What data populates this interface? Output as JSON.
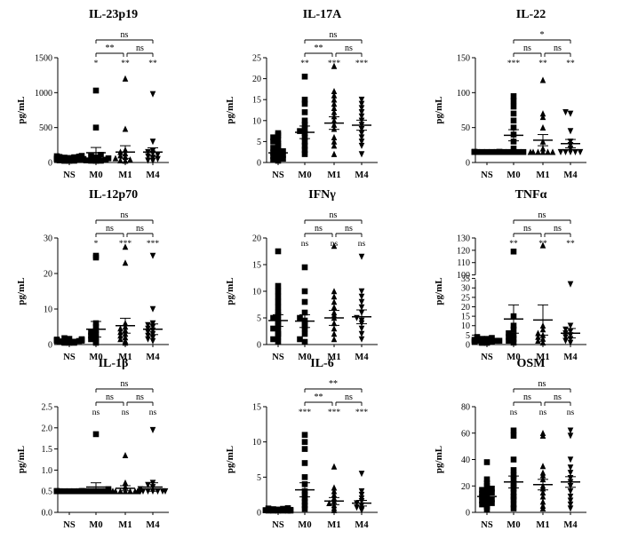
{
  "figure": {
    "y_unit": "pg/mL",
    "categories": [
      "NS",
      "M0",
      "M1",
      "M4"
    ]
  },
  "chart_data": [
    {
      "type": "scatter",
      "title": "IL-23p19",
      "ylabel": "pg/mL",
      "categories": [
        "NS",
        "M0",
        "M1",
        "M4"
      ],
      "ylim": [
        0,
        1500
      ],
      "yticks": [
        "0",
        "500",
        "1000",
        "1500"
      ],
      "series": [
        {
          "category": "NS",
          "marker": "square",
          "values": [
            5,
            10,
            15,
            20,
            25,
            30,
            35,
            40,
            45,
            50,
            55,
            60,
            65,
            70,
            75,
            80,
            85,
            90,
            95
          ],
          "mean": 30,
          "sem": 12
        },
        {
          "category": "M0",
          "marker": "square",
          "values": [
            10,
            15,
            20,
            25,
            30,
            40,
            50,
            60,
            75,
            90,
            110,
            500,
            1030
          ],
          "mean": 140,
          "sem": 75
        },
        {
          "category": "M1",
          "marker": "triangle",
          "values": [
            10,
            20,
            30,
            40,
            60,
            80,
            100,
            130,
            150,
            180,
            480,
            1200
          ],
          "mean": 150,
          "sem": 90
        },
        {
          "category": "M4",
          "marker": "triangle-down",
          "values": [
            10,
            20,
            30,
            50,
            70,
            90,
            110,
            130,
            150,
            170,
            300,
            980
          ],
          "mean": 150,
          "sem": 60
        }
      ],
      "sig_vs_ns": [
        "*",
        "**",
        "**"
      ],
      "brackets": [
        {
          "from": 1,
          "to": 3,
          "label": "ns"
        },
        {
          "from": 1,
          "to": 2,
          "label": "**"
        },
        {
          "from": 2,
          "to": 3,
          "label": "ns"
        }
      ]
    },
    {
      "type": "scatter",
      "title": "IL-17A",
      "ylabel": "pg/mL",
      "categories": [
        "NS",
        "M0",
        "M1",
        "M4"
      ],
      "ylim": [
        0,
        25
      ],
      "yticks": [
        "0",
        "5",
        "10",
        "15",
        "20",
        "25"
      ],
      "series": [
        {
          "category": "NS",
          "marker": "square",
          "values": [
            0.3,
            0.6,
            0.9,
            1.2,
            1.5,
            1.8,
            2.1,
            2.4,
            2.7,
            3,
            3.5,
            4,
            4.5,
            5,
            5.5,
            6,
            6.5,
            7
          ],
          "mean": 2.3,
          "sem": 0.6
        },
        {
          "category": "M0",
          "marker": "square",
          "values": [
            2,
            3,
            4,
            5,
            6,
            7,
            7.5,
            8,
            9,
            10,
            12,
            14,
            15,
            20.5
          ],
          "mean": 7.2,
          "sem": 1.5
        },
        {
          "category": "M1",
          "marker": "triangle",
          "values": [
            2,
            4,
            5,
            6,
            8,
            9,
            10,
            11,
            12,
            13,
            14,
            15,
            16,
            17,
            23
          ],
          "mean": 9.4,
          "sem": 1.5
        },
        {
          "category": "M4",
          "marker": "triangle-down",
          "values": [
            2,
            4,
            5,
            6,
            7,
            8,
            9,
            10,
            11,
            12,
            13,
            14,
            15
          ],
          "mean": 8.9,
          "sem": 1.2
        }
      ],
      "sig_vs_ns": [
        "**",
        "***",
        "***"
      ],
      "brackets": [
        {
          "from": 1,
          "to": 3,
          "label": "ns"
        },
        {
          "from": 1,
          "to": 2,
          "label": "**"
        },
        {
          "from": 2,
          "to": 3,
          "label": "ns"
        }
      ]
    },
    {
      "type": "scatter",
      "title": "IL-22",
      "ylabel": "pg/mL",
      "categories": [
        "NS",
        "M0",
        "M1",
        "M4"
      ],
      "ylim": [
        0,
        150
      ],
      "yticks": [
        "0",
        "50",
        "100",
        "150"
      ],
      "series": [
        {
          "category": "NS",
          "marker": "square",
          "values": [
            15,
            15,
            15,
            15,
            15,
            15,
            15,
            15,
            15,
            15,
            15,
            15,
            15,
            15,
            15,
            15,
            15,
            15
          ],
          "mean": 15,
          "sem": 0
        },
        {
          "category": "M0",
          "marker": "square",
          "values": [
            15,
            15,
            15,
            15,
            15,
            20,
            30,
            40,
            50,
            60,
            70,
            80,
            88,
            95
          ],
          "mean": 39,
          "sem": 8
        },
        {
          "category": "M1",
          "marker": "triangle",
          "values": [
            15,
            15,
            15,
            15,
            15,
            15,
            20,
            30,
            50,
            65,
            70,
            118
          ],
          "mean": 32,
          "sem": 8
        },
        {
          "category": "M4",
          "marker": "triangle-down",
          "values": [
            15,
            15,
            15,
            15,
            15,
            20,
            25,
            30,
            45,
            70,
            72
          ],
          "mean": 27,
          "sem": 6
        }
      ],
      "sig_vs_ns": [
        "***",
        "**",
        "**"
      ],
      "brackets": [
        {
          "from": 1,
          "to": 3,
          "label": "*"
        },
        {
          "from": 1,
          "to": 2,
          "label": "ns"
        },
        {
          "from": 2,
          "to": 3,
          "label": "ns"
        }
      ]
    },
    {
      "type": "scatter",
      "title": "IL-12p70",
      "ylabel": "pg/mL",
      "categories": [
        "NS",
        "M0",
        "M1",
        "M4"
      ],
      "ylim": [
        0,
        30
      ],
      "yticks": [
        "0",
        "10",
        "20",
        "30"
      ],
      "series": [
        {
          "category": "NS",
          "marker": "square",
          "values": [
            0.3,
            0.4,
            0.5,
            0.6,
            0.7,
            0.8,
            0.9,
            1,
            1,
            1.1,
            1.2,
            1.3,
            1.4,
            1.5,
            1.6,
            1.8
          ],
          "mean": 0.9,
          "sem": 0.15
        },
        {
          "category": "M0",
          "marker": "square",
          "values": [
            0.5,
            1,
            1.5,
            2,
            2.5,
            3,
            3.5,
            4,
            5,
            6,
            24.5,
            25
          ],
          "mean": 4.3,
          "sem": 2.2
        },
        {
          "category": "M1",
          "marker": "triangle",
          "values": [
            0.5,
            1,
            1.5,
            2,
            2.5,
            3,
            3.5,
            4,
            4.5,
            5,
            6,
            23,
            27.5
          ],
          "mean": 5.3,
          "sem": 2.1
        },
        {
          "category": "M4",
          "marker": "triangle-down",
          "values": [
            1,
            1.5,
            2,
            2.5,
            3,
            3.5,
            4,
            4.5,
            5,
            5.5,
            6,
            10,
            25
          ],
          "mean": 4.3,
          "sem": 1.5
        }
      ],
      "sig_vs_ns": [
        "*",
        "***",
        "***"
      ],
      "brackets": [
        {
          "from": 1,
          "to": 3,
          "label": "ns"
        },
        {
          "from": 1,
          "to": 2,
          "label": "ns"
        },
        {
          "from": 2,
          "to": 3,
          "label": "ns"
        }
      ]
    },
    {
      "type": "scatter",
      "title": "IFNγ",
      "ylabel": "pg/mL",
      "categories": [
        "NS",
        "M0",
        "M1",
        "M4"
      ],
      "ylim": [
        0,
        20
      ],
      "yticks": [
        "0",
        "5",
        "10",
        "15",
        "20"
      ],
      "series": [
        {
          "category": "NS",
          "marker": "square",
          "values": [
            0.5,
            1,
            1.5,
            2,
            2.5,
            3,
            3.5,
            4,
            4.5,
            5,
            5.5,
            6,
            7,
            8,
            9,
            10,
            11,
            17.5
          ],
          "mean": 4.5,
          "sem": 1.1
        },
        {
          "category": "M0",
          "marker": "square",
          "values": [
            0.5,
            1,
            2,
            3,
            3.5,
            4,
            4.5,
            5,
            6,
            8,
            10,
            14.5
          ],
          "mean": 4.4,
          "sem": 1.2
        },
        {
          "category": "M1",
          "marker": "triangle",
          "values": [
            1,
            2,
            3,
            4,
            5,
            5.5,
            6,
            7,
            8,
            9,
            10,
            18.5
          ],
          "mean": 5,
          "sem": 1.4
        },
        {
          "category": "M4",
          "marker": "triangle-down",
          "values": [
            1,
            2,
            3,
            4,
            4.5,
            5,
            6,
            7,
            8,
            9,
            10,
            16.5
          ],
          "mean": 5.2,
          "sem": 1.3
        }
      ],
      "sig_vs_ns": [
        "ns",
        "ns",
        "ns"
      ],
      "brackets": [
        {
          "from": 1,
          "to": 3,
          "label": "ns"
        },
        {
          "from": 1,
          "to": 2,
          "label": "ns"
        },
        {
          "from": 2,
          "to": 3,
          "label": "ns"
        }
      ]
    },
    {
      "type": "scatter",
      "title": "TNFα",
      "ylabel": "pg/mL",
      "categories": [
        "NS",
        "M0",
        "M1",
        "M4"
      ],
      "ylim": [
        0,
        130
      ],
      "ybreak": [
        35,
        100
      ],
      "yticks": [
        "0",
        "5",
        "10",
        "15",
        "20",
        "25",
        "30",
        "35",
        "100",
        "110",
        "120",
        "130"
      ],
      "series": [
        {
          "category": "NS",
          "marker": "square",
          "values": [
            0.5,
            1,
            1,
            1.5,
            2,
            2,
            2.5,
            3,
            3,
            3.5,
            4,
            2,
            1.5,
            0.8
          ],
          "mean": 2,
          "sem": 0.3
        },
        {
          "category": "M0",
          "marker": "square",
          "values": [
            1,
            2,
            3,
            4,
            5,
            6,
            8,
            10,
            15,
            119
          ],
          "mean": 13.5,
          "sem": 7.5
        },
        {
          "category": "M1",
          "marker": "triangle",
          "values": [
            1,
            2,
            3,
            4,
            5,
            6,
            8,
            10,
            124
          ],
          "mean": 13,
          "sem": 8
        },
        {
          "category": "M4",
          "marker": "triangle-down",
          "values": [
            1,
            2,
            3,
            4,
            5,
            6,
            7,
            8,
            10,
            32
          ],
          "mean": 6,
          "sem": 2.5
        }
      ],
      "sig_vs_ns": [
        "**",
        "**",
        "**"
      ],
      "brackets": [
        {
          "from": 1,
          "to": 3,
          "label": "ns"
        },
        {
          "from": 1,
          "to": 2,
          "label": "ns"
        },
        {
          "from": 2,
          "to": 3,
          "label": "ns"
        }
      ]
    },
    {
      "type": "scatter",
      "title": "IL-1β",
      "ylabel": "pg/mL",
      "categories": [
        "NS",
        "M0",
        "M1",
        "M4"
      ],
      "ylim": [
        0,
        2.5
      ],
      "yticks": [
        "0.0",
        "0.5",
        "1.0",
        "1.5",
        "2.0",
        "2.5"
      ],
      "series": [
        {
          "category": "NS",
          "marker": "square",
          "values": [
            0.5,
            0.5,
            0.5,
            0.5,
            0.5,
            0.5,
            0.5,
            0.5,
            0.5,
            0.5,
            0.5,
            0.5,
            0.5,
            0.5,
            0.5,
            0.5,
            0.5,
            0.5
          ],
          "mean": 0.5,
          "sem": 0
        },
        {
          "category": "M0",
          "marker": "square",
          "values": [
            0.5,
            0.5,
            0.5,
            0.5,
            0.5,
            0.5,
            0.5,
            0.5,
            0.5,
            0.5,
            0.55,
            1.85
          ],
          "mean": 0.6,
          "sem": 0.1
        },
        {
          "category": "M1",
          "marker": "triangle",
          "values": [
            0.5,
            0.5,
            0.5,
            0.5,
            0.5,
            0.5,
            0.5,
            0.5,
            0.5,
            0.6,
            0.7,
            1.35
          ],
          "mean": 0.57,
          "sem": 0.06
        },
        {
          "category": "M4",
          "marker": "triangle-down",
          "values": [
            0.5,
            0.5,
            0.5,
            0.5,
            0.5,
            0.5,
            0.5,
            0.55,
            0.6,
            0.65,
            0.7,
            1.95
          ],
          "mean": 0.6,
          "sem": 0.1
        }
      ],
      "sig_vs_ns": [
        "ns",
        "ns",
        "ns"
      ],
      "brackets": [
        {
          "from": 1,
          "to": 3,
          "label": "ns"
        },
        {
          "from": 1,
          "to": 2,
          "label": "ns"
        },
        {
          "from": 2,
          "to": 3,
          "label": "ns"
        }
      ]
    },
    {
      "type": "scatter",
      "title": "IL-6",
      "ylabel": "pg/mL",
      "categories": [
        "NS",
        "M0",
        "M1",
        "M4"
      ],
      "ylim": [
        0,
        15
      ],
      "yticks": [
        "0",
        "5",
        "10",
        "15"
      ],
      "series": [
        {
          "category": "NS",
          "marker": "square",
          "values": [
            0.05,
            0.1,
            0.15,
            0.2,
            0.25,
            0.3,
            0.35,
            0.4,
            0.45,
            0.5,
            0.55,
            0.6,
            0.3,
            0.2
          ],
          "mean": 0.3,
          "sem": 0.05
        },
        {
          "category": "M0",
          "marker": "square",
          "values": [
            0.5,
            1,
            1.5,
            2,
            2.5,
            3,
            4,
            5,
            7,
            9,
            10,
            11
          ],
          "mean": 3.2,
          "sem": 1
        },
        {
          "category": "M1",
          "marker": "triangle",
          "values": [
            0.3,
            0.6,
            1,
            1.3,
            1.6,
            2,
            2.5,
            3,
            3.5,
            6.5
          ],
          "mean": 1.6,
          "sem": 0.5
        },
        {
          "category": "M4",
          "marker": "triangle-down",
          "values": [
            0.3,
            0.5,
            0.7,
            1,
            1.3,
            1.6,
            2,
            2.5,
            3,
            5.5
          ],
          "mean": 1.3,
          "sem": 0.4
        }
      ],
      "sig_vs_ns": [
        "***",
        "***",
        "***"
      ],
      "brackets": [
        {
          "from": 1,
          "to": 3,
          "label": "**"
        },
        {
          "from": 1,
          "to": 2,
          "label": "**"
        },
        {
          "from": 2,
          "to": 3,
          "label": "ns"
        }
      ]
    },
    {
      "type": "scatter",
      "title": "OSM",
      "ylabel": "pg/mL",
      "categories": [
        "NS",
        "M0",
        "M1",
        "M4"
      ],
      "ylim": [
        0,
        80
      ],
      "yticks": [
        "0",
        "20",
        "40",
        "60",
        "80"
      ],
      "series": [
        {
          "category": "NS",
          "marker": "square",
          "values": [
            2,
            4,
            5,
            6,
            7,
            8,
            9,
            10,
            11,
            12,
            13,
            14,
            15,
            16,
            17,
            18,
            20,
            22,
            25,
            38
          ],
          "mean": 12,
          "sem": 1.8
        },
        {
          "category": "M0",
          "marker": "square",
          "values": [
            3,
            6,
            10,
            12,
            15,
            18,
            20,
            22,
            25,
            28,
            32,
            40,
            58,
            62
          ],
          "mean": 23,
          "sem": 4.5
        },
        {
          "category": "M1",
          "marker": "triangle",
          "values": [
            3,
            5,
            8,
            12,
            15,
            18,
            20,
            25,
            28,
            30,
            35,
            58,
            60
          ],
          "mean": 21,
          "sem": 4
        },
        {
          "category": "M4",
          "marker": "triangle-down",
          "values": [
            3,
            6,
            9,
            12,
            16,
            20,
            23,
            26,
            30,
            34,
            40,
            58,
            62
          ],
          "mean": 23,
          "sem": 4
        }
      ],
      "sig_vs_ns": [
        "ns",
        "ns",
        "ns"
      ],
      "brackets": [
        {
          "from": 1,
          "to": 3,
          "label": "ns"
        },
        {
          "from": 1,
          "to": 2,
          "label": "ns"
        },
        {
          "from": 2,
          "to": 3,
          "label": "ns"
        }
      ]
    }
  ]
}
